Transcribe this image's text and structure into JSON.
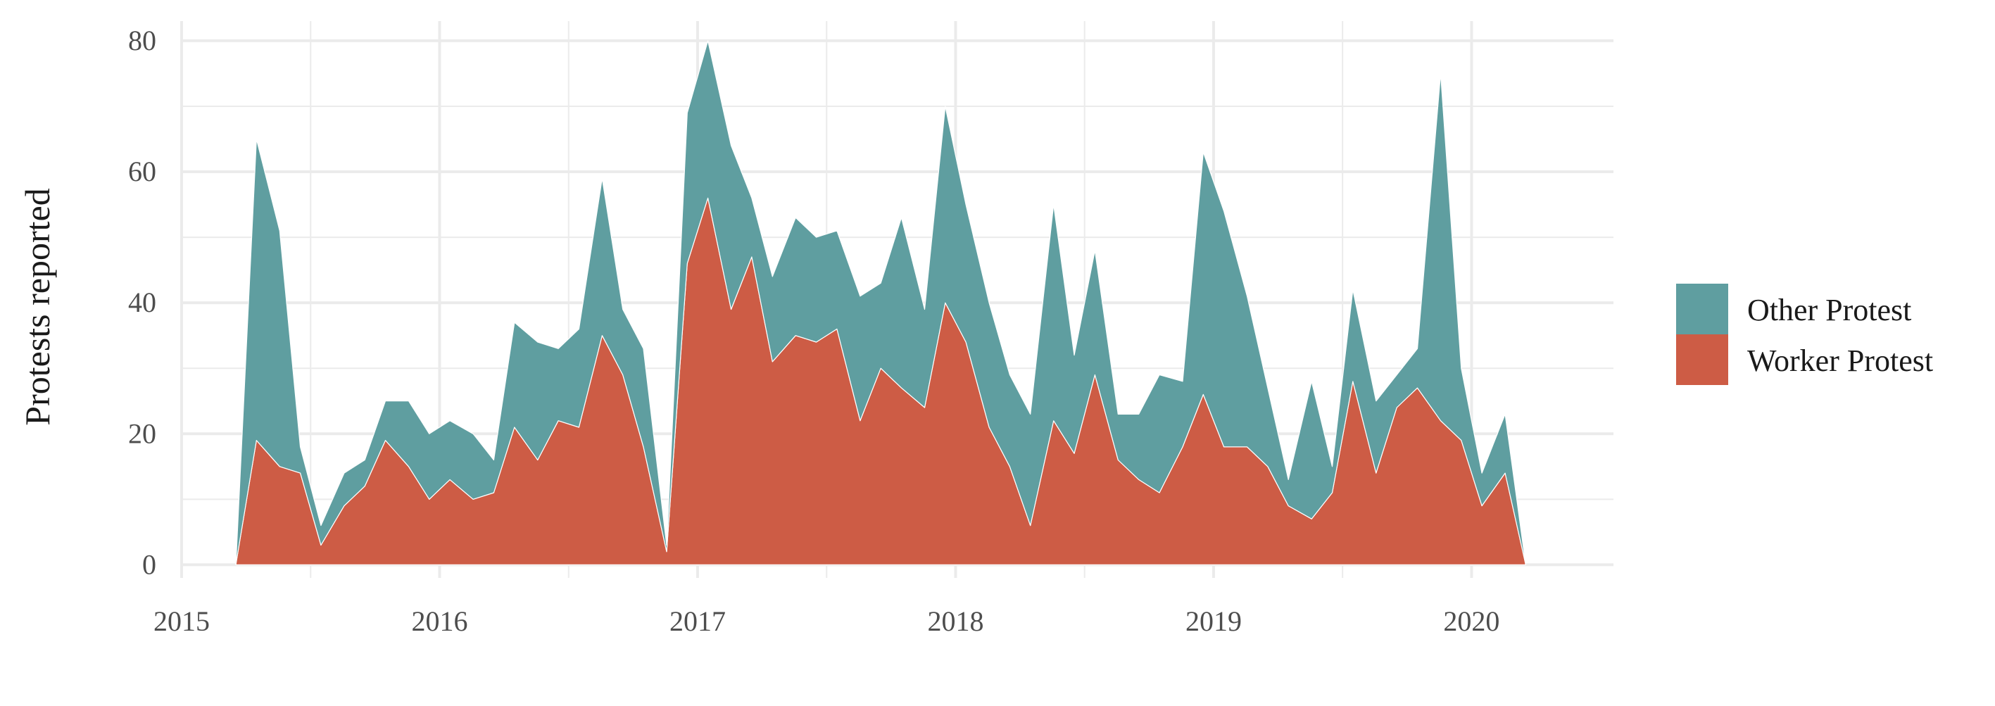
{
  "chart_data": {
    "type": "area",
    "stacked": true,
    "title": "",
    "xlabel": "",
    "ylabel": "Protests reported",
    "xlim": [
      2015.0,
      2020.55
    ],
    "ylim": [
      -2,
      83
    ],
    "x_ticks": [
      2015,
      2016,
      2017,
      2018,
      2019,
      2020
    ],
    "x_tick_labels": [
      "2015",
      "2016",
      "2017",
      "2018",
      "2019",
      "2020"
    ],
    "y_ticks": [
      0,
      20,
      40,
      60,
      80
    ],
    "y_tick_labels": [
      "0",
      "20",
      "40",
      "60",
      "80"
    ],
    "grid": true,
    "legend_position": "right",
    "x": [
      2015.21,
      2015.29,
      2015.38,
      2015.46,
      2015.54,
      2015.63,
      2015.71,
      2015.79,
      2015.88,
      2015.96,
      2016.04,
      2016.13,
      2016.21,
      2016.29,
      2016.38,
      2016.46,
      2016.54,
      2016.63,
      2016.71,
      2016.79,
      2016.88,
      2016.96,
      2017.04,
      2017.13,
      2017.21,
      2017.29,
      2017.38,
      2017.46,
      2017.54,
      2017.63,
      2017.71,
      2017.79,
      2017.88,
      2017.96,
      2018.04,
      2018.13,
      2018.21,
      2018.29,
      2018.38,
      2018.46,
      2018.54,
      2018.63,
      2018.71,
      2018.79,
      2018.88,
      2018.96,
      2019.04,
      2019.13,
      2019.21,
      2019.29,
      2019.38,
      2019.46,
      2019.54,
      2019.63,
      2019.71,
      2019.79,
      2019.88,
      2019.96,
      2020.04,
      2020.13,
      2020.21
    ],
    "series": [
      {
        "name": "Worker Protest",
        "color": "#cd5c45",
        "values": [
          0,
          19,
          15,
          14,
          3,
          9,
          12,
          19,
          15,
          10,
          13,
          10,
          11,
          21,
          16,
          22,
          21,
          35,
          29,
          18,
          2,
          46,
          56,
          39,
          47,
          31,
          35,
          34,
          36,
          22,
          30,
          27,
          24,
          40,
          34,
          21,
          15,
          6,
          22,
          17,
          29,
          16,
          13,
          11,
          18,
          26,
          18,
          18,
          15,
          9,
          7,
          11,
          28,
          14,
          24,
          27,
          22,
          19,
          9,
          14,
          0
        ]
      },
      {
        "name": "Other Protest",
        "color": "#5f9ea0",
        "values": [
          0,
          46,
          36,
          4,
          3,
          5,
          4,
          6,
          10,
          10,
          9,
          10,
          5,
          16,
          18,
          11,
          15,
          24,
          10,
          15,
          1,
          23,
          24,
          25,
          9,
          13,
          18,
          16,
          15,
          19,
          13,
          26,
          15,
          30,
          21,
          19,
          14,
          17,
          33,
          15,
          19,
          7,
          10,
          18,
          10,
          37,
          36,
          23,
          12,
          4,
          21,
          4,
          14,
          11,
          5,
          6,
          53,
          11,
          5,
          9,
          0
        ]
      }
    ]
  },
  "legend": {
    "items": [
      {
        "label": "Other Protest",
        "color": "#5f9ea0"
      },
      {
        "label": "Worker Protest",
        "color": "#cd5c45"
      }
    ]
  }
}
